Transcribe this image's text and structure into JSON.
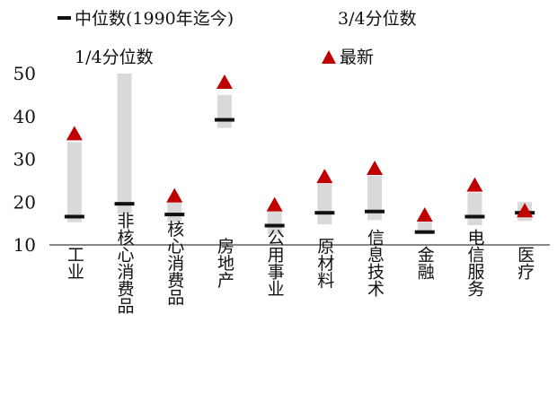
{
  "chart_data": {
    "type": "floating_bar_range",
    "title": "",
    "xlabel": "",
    "ylabel": "",
    "ylim": [
      10,
      50
    ],
    "yticks": [
      10,
      20,
      30,
      40,
      50
    ],
    "grid": false,
    "legend_position": "top",
    "legend": {
      "median": "中位数(1990年迄今)",
      "q3": "3/4分位数",
      "q1": "1/4分位数",
      "latest": "最新"
    },
    "categories": [
      "工业",
      "非核心消费品",
      "核心消费品",
      "房地产",
      "公用事业",
      "原材料",
      "信息技术",
      "金融",
      "电信服务",
      "医疗"
    ],
    "series": [
      {
        "name": "1/4分位数",
        "values": [
          15.3,
          17.3,
          15.4,
          37.3,
          12.5,
          14.8,
          15.8,
          12.6,
          14.6,
          15.6
        ]
      },
      {
        "name": "3/4分位数",
        "values": [
          34.0,
          50.0,
          20.3,
          45.0,
          17.8,
          24.3,
          26.2,
          15.4,
          22.2,
          20.0
        ]
      },
      {
        "name": "中位数(1990年迄今)",
        "values": [
          16.6,
          19.6,
          17.1,
          39.2,
          14.5,
          17.5,
          17.8,
          13.0,
          16.6,
          17.5
        ]
      },
      {
        "name": "最新",
        "values": [
          35.9,
          null,
          21.4,
          47.9,
          19.3,
          25.9,
          27.8,
          16.9,
          23.9,
          17.9
        ]
      }
    ],
    "colors": {
      "range": "#d9d9d9",
      "median": "#111111",
      "latest": "#c00000",
      "axis": "#111111"
    }
  }
}
